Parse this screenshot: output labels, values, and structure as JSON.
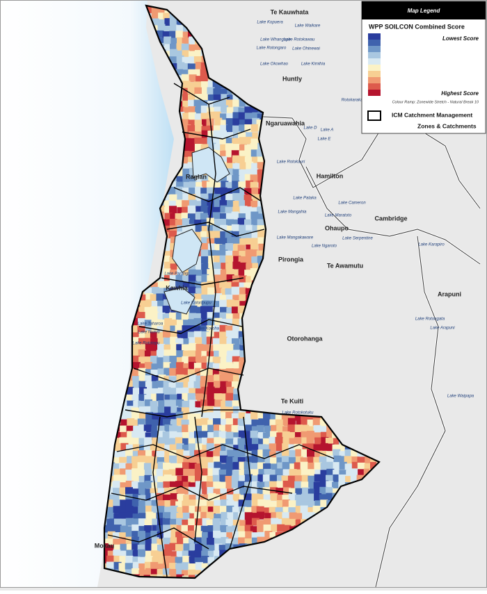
{
  "legend": {
    "header": "Map Legend",
    "title": "WPP SOILCON Combined Score",
    "low": "Lowest Score",
    "high": "Highest Score",
    "note": "Colour Ramp: Zonewide Stretch - Natural Break 10",
    "ramp": [
      "#2a3d9e",
      "#3f62ad",
      "#6f97c7",
      "#a9c7e0",
      "#d8e9f2",
      "#fbf2c6",
      "#f7cf93",
      "#f09a72",
      "#dd5a4c",
      "#b5142e"
    ],
    "boundary_line1": "ICM Catchment Management",
    "boundary_line2": "Zones & Catchments"
  },
  "towns": [
    "Te Kauwhata",
    "Huntly",
    "Ngaruawahia",
    "Raglan",
    "Hamilton",
    "Cambridge",
    "Ohaupo",
    "Pirongia",
    "Te Awamutu",
    "Kawhia",
    "Otorohanga",
    "Te Kuiti",
    "Arapuni",
    "Mokau"
  ],
  "lakes": [
    "Lake Kopuera",
    "Lake Waikare",
    "Lake Whangape",
    "Lake Rotokawau",
    "Lake Rotongaro",
    "Lake Ohinewai",
    "Lake Okowhao",
    "Lake Kimihia",
    "Rotokaraka",
    "Lake D",
    "Lake A",
    "Lake E",
    "Lake Rotokauri",
    "Lake Pataka",
    "Lake Cameron",
    "Lake Mangahia",
    "Lake Maratoto",
    "Lake Mangakaware",
    "Lake Ngaroto",
    "Lake Serpentine",
    "Lake Karapiro",
    "Lake Parangi",
    "Lake Kotoripupu",
    "Lake Taharoa",
    "Lake Koroha",
    "Lake Numiti",
    "Lake Rototapu",
    "Lake Rotongata",
    "Lake Arapuni",
    "Lake Waipapa",
    "Lake Rotokotuku"
  ]
}
